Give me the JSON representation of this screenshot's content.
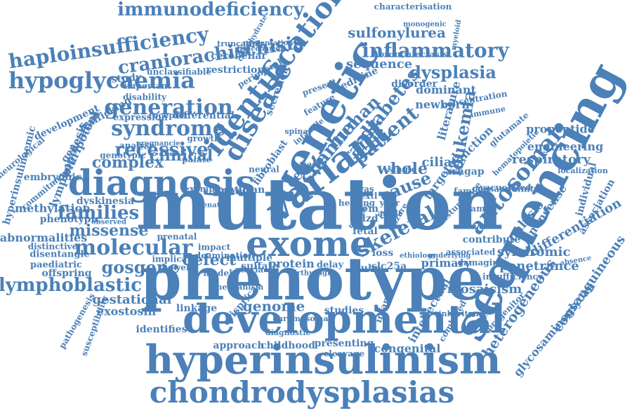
{
  "accent_color": "#4b80b8",
  "words": [
    "mutation",
    "phenotype",
    "sequencing",
    "genetic",
    "hyperinsulinism",
    "developmental",
    "variant",
    "diagnosis",
    "exome",
    "chondrodysplasias",
    "identification",
    "disease",
    "hypoglycaemia",
    "haploinsufficiency",
    "craniorachischisis",
    "inflammatory",
    "immunodeficiency",
    "generation",
    "syndrome",
    "molecular",
    "lymphoblastic",
    "autosomal",
    "skeletal",
    "patient",
    "channel",
    "human",
    "diabetes",
    "cell",
    "rare",
    "cause",
    "leukemia",
    "dysplasia",
    "recessive",
    "complex",
    "clinical",
    "families",
    "missense",
    "gosgene",
    "defect",
    "genome",
    "whole",
    "ciliary",
    "respiratory",
    "engineering",
    "propeptide",
    "analysis",
    "nonsense",
    "differentiation",
    "syndromic",
    "penetrance",
    "heterogeneous",
    "consanguineous",
    "glycosaminoglycan",
    "mosaicism",
    "sulfonylurea",
    "characterisation",
    "sequence",
    "dominant",
    "newborn",
    "function",
    "targeted",
    "arhgap",
    "primary",
    "congenital",
    "intellectual",
    "infancy",
    "gestational",
    "exostosin",
    "methylation",
    "phenotypic",
    "abnormalities",
    "embryonic",
    "lymphopoiesis",
    "pluripotent",
    "development",
    "hyperinsulinaemic",
    "trafficking",
    "generation",
    "study",
    "protein",
    "sulfate",
    "slc25a",
    "tube",
    "delay",
    "loss",
    "fetal",
    "pdzd",
    "stem",
    "gwas",
    "neural",
    "fibroblast",
    "secretion",
    "cerebellar",
    "restriction",
    "important",
    "unclassifiable",
    "disability",
    "expression",
    "receptor",
    "differential",
    "genotypic",
    "analyse",
    "growth",
    "palate",
    "child",
    "ovarian",
    "example",
    "dyskinesia",
    "distinctive",
    "disentangle",
    "paediatric",
    "offspring",
    "implicate",
    "bowel",
    "model",
    "ataxia",
    "multiple",
    "linkage",
    "crispr/cas",
    "identifies",
    "approach",
    "childhood",
    "presenting",
    "cleavage",
    "studies",
    "year",
    "adult",
    "extl",
    "hearing",
    "disorder",
    "medicine",
    "bronchiectasis",
    "monogenic",
    "myeloid",
    "familial",
    "literature",
    "concentration",
    "glutamate",
    "association",
    "individual",
    "contribute",
    "associated",
    "damaging",
    "insufficiency",
    "progenitor",
    "family",
    "disturbance",
    "consanguinity",
    "localization",
    "vacuolated",
    "hematopoietic",
    "immune",
    "absence",
    "seizure",
    "cleft",
    "number",
    "underlying",
    "ethiology",
    "pathogenesis",
    "presentation",
    "susceptibility",
    "neurological",
    "commitment",
    "pregnancies",
    "observed",
    "prenatal",
    "impact",
    "deamination",
    "mechanism",
    "chromosomal",
    "diagnostic",
    "birthweight",
    "carbohydrate",
    "disaccharide",
    "truncating",
    "peripheral",
    "present",
    "feature",
    "infantile",
    "spinal",
    "combined",
    "inheritance",
    "prenatal",
    "single",
    "panel"
  ]
}
